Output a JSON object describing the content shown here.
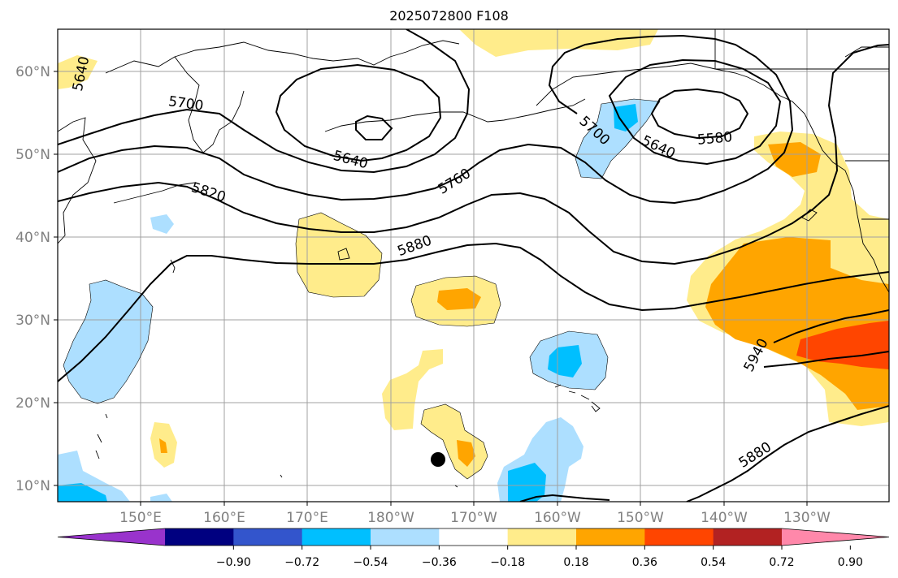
{
  "title": "2025072800 F108",
  "colors": {
    "neg090": "#9933CC",
    "neg072": "#000080",
    "neg054": "#3355CC",
    "neg036": "#00BFFF",
    "neg018": "#ADDFFF",
    "zero": "#FFFFFF",
    "pos018": "#FFEC8B",
    "pos036": "#FFA500",
    "pos054": "#FF4500",
    "pos072": "#B22222",
    "pos090": "#FF88AA",
    "coast": "#000000",
    "grid": "#A0A0A0"
  },
  "map": {
    "lat_labels": [
      "60°N",
      "50°N",
      "40°N",
      "30°N",
      "20°N",
      "10°N"
    ],
    "lon_labels": [
      "150°E",
      "160°E",
      "170°E",
      "180°W",
      "170°W",
      "160°W",
      "150°W",
      "140°W",
      "130°W"
    ],
    "lat_range": [
      8,
      65
    ],
    "lon_range": [
      140,
      240
    ]
  },
  "contours": {
    "labels": [
      "5640",
      "5700",
      "5640",
      "5820",
      "5760",
      "5880",
      "5700",
      "5640",
      "5580",
      "5940",
      "5880"
    ]
  },
  "colorbar": {
    "ticks": [
      "−0.90",
      "−0.72",
      "−0.54",
      "−0.36",
      "−0.18",
      "0.18",
      "0.36",
      "0.54",
      "0.72",
      "0.90"
    ]
  }
}
